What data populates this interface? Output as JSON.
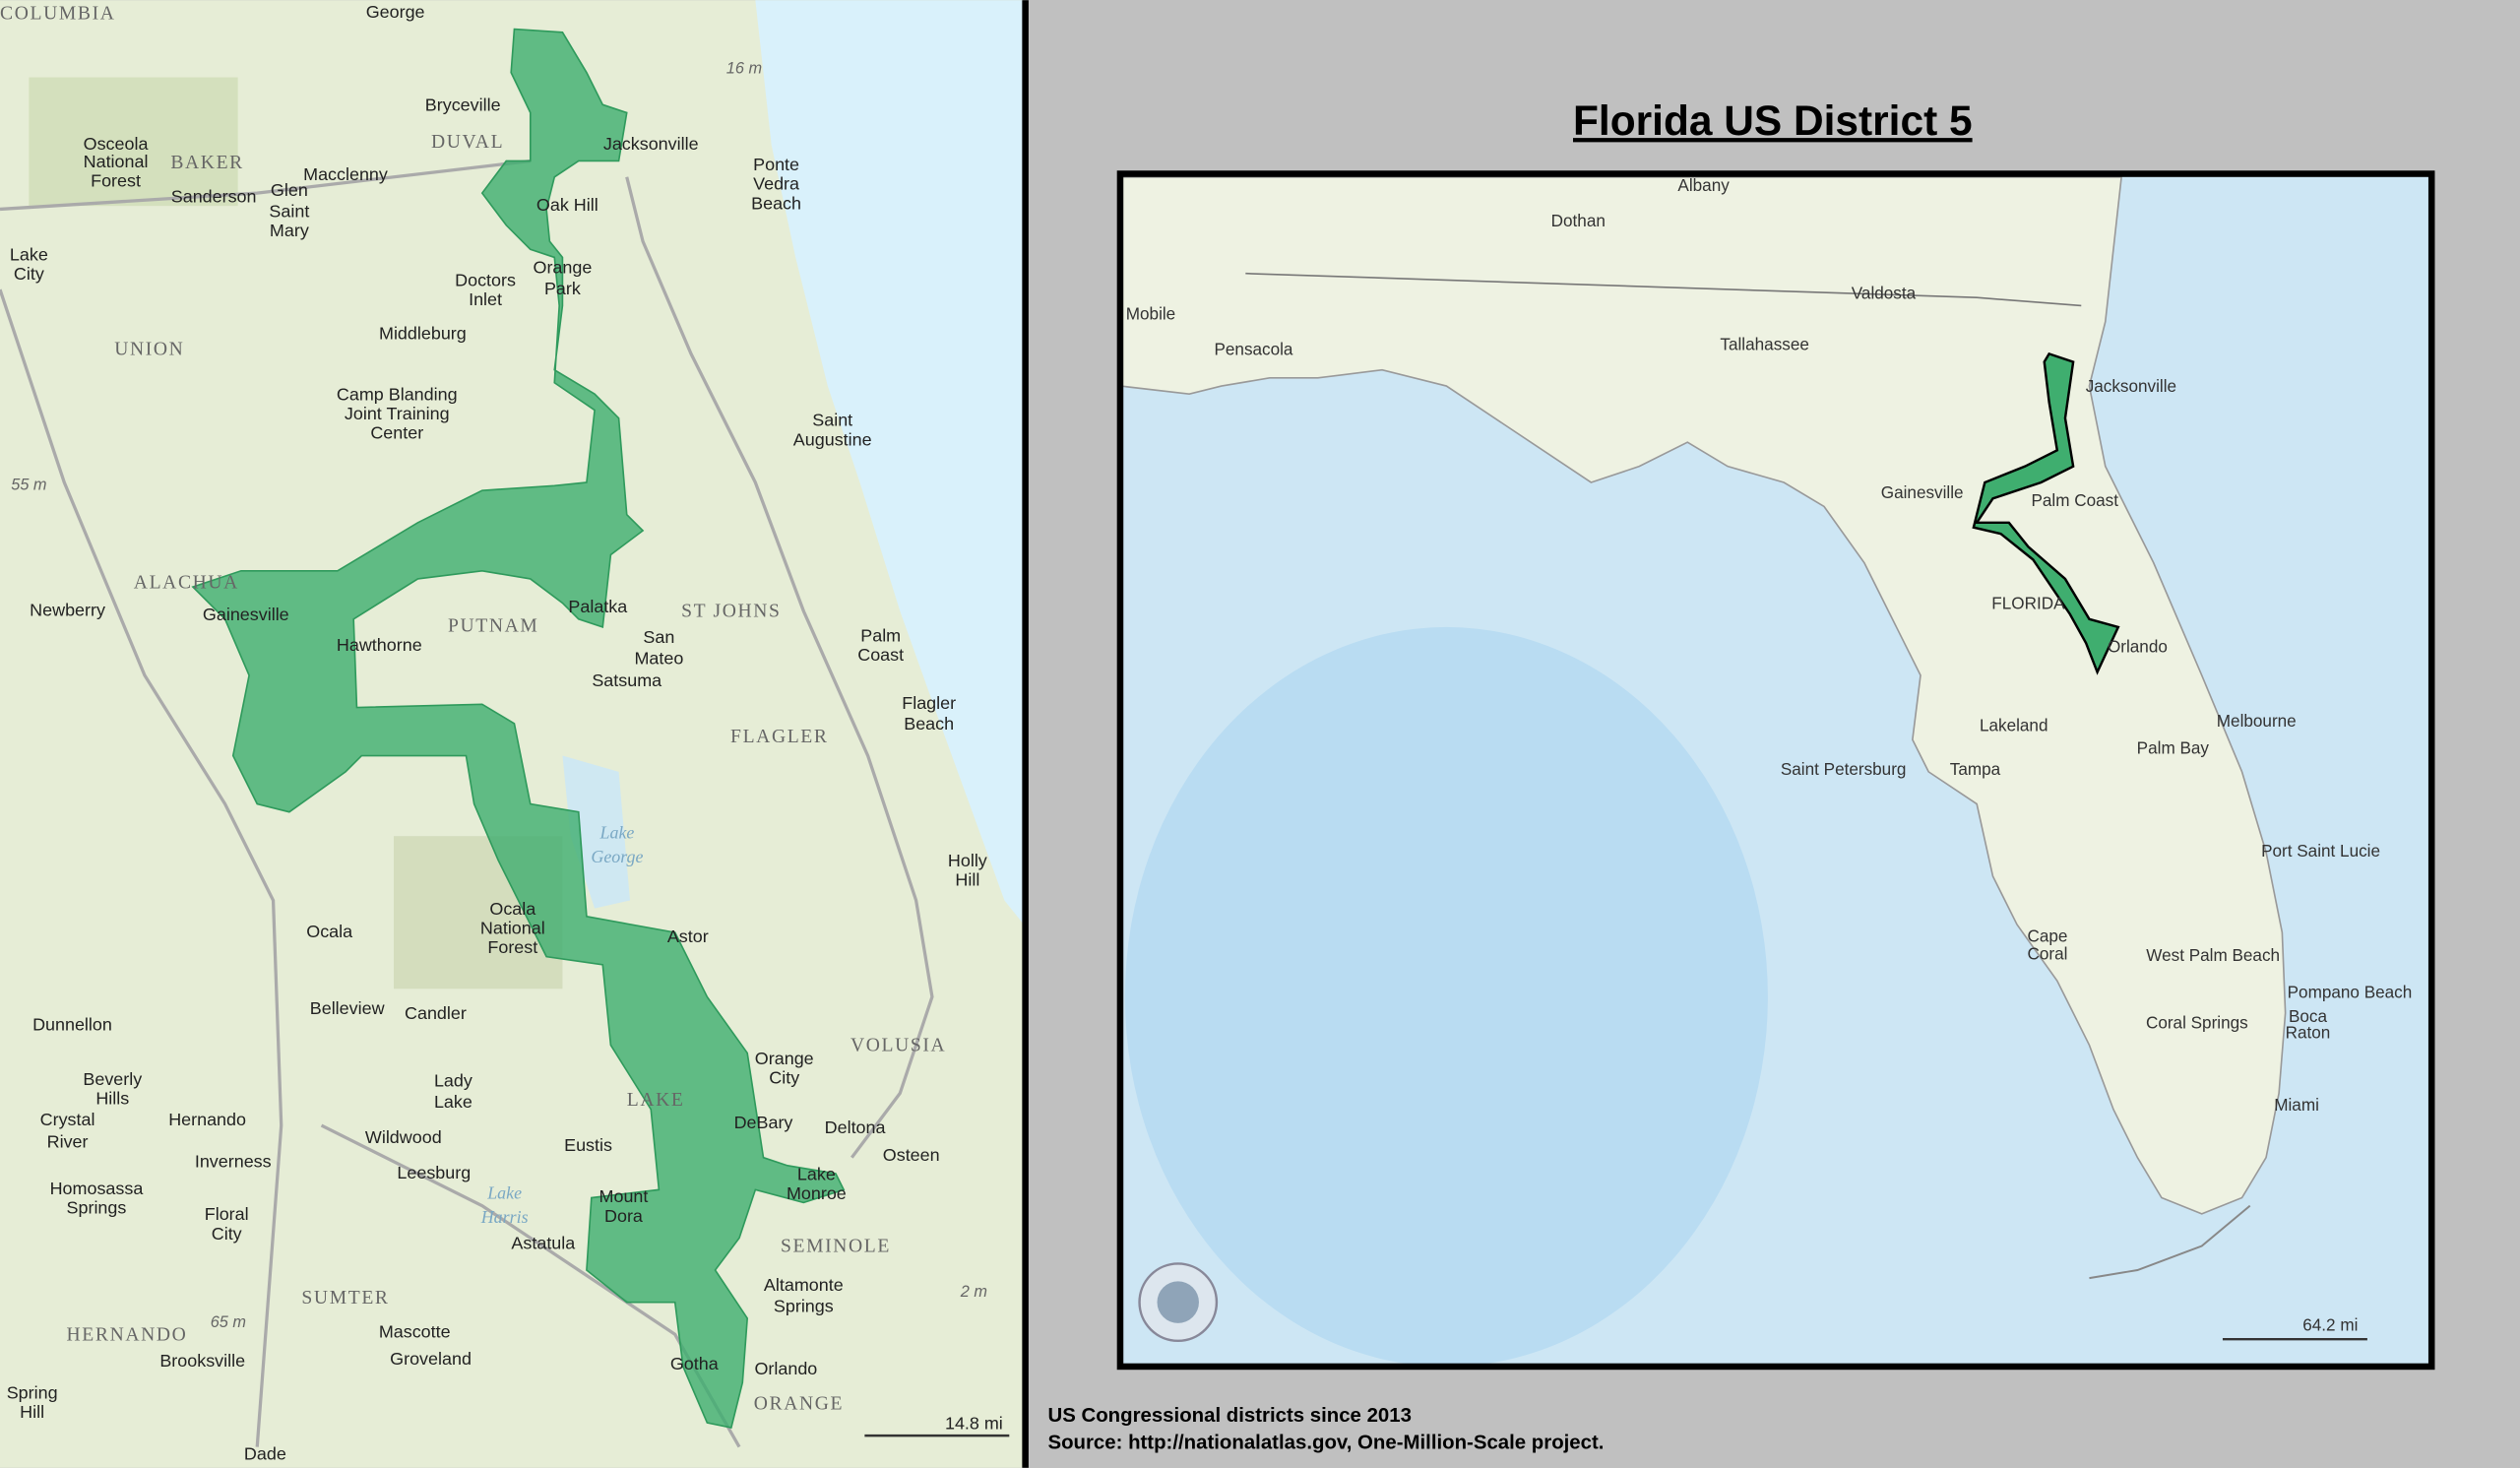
{
  "title": "Florida US District 5",
  "footer": [
    "US Congressional districts since 2013",
    "Source: http://nationalatlas.gov, One-Million-Scale project."
  ],
  "left_map": {
    "scale": "14.8 mi",
    "labels": [
      "COLUMBIA",
      "George",
      "16 m",
      "Bryceville",
      "DUVAL",
      "Jacksonville",
      "Osceola",
      "National",
      "Forest",
      "BAKER",
      "Macclenny",
      "Ponte",
      "Vedra",
      "Beach",
      "Sanderson",
      "Glen",
      "Saint",
      "Mary",
      "Oak Hill",
      "Lake",
      "City",
      "Orange",
      "Park",
      "Doctors",
      "Inlet",
      "UNION",
      "Middleburg",
      "Camp Blanding",
      "Joint Training",
      "Center",
      "Saint",
      "Augustine",
      "55 m",
      "ALACHUA",
      "Newberry",
      "Gainesville",
      "PUTNAM",
      "Palatka",
      "ST JOHNS",
      "Palm",
      "Coast",
      "Hawthorne",
      "San",
      "Mateo",
      "Satsuma",
      "Flagler",
      "Beach",
      "FLAGLER",
      "Lake",
      "George",
      "Holly",
      "Hill",
      "Ocala",
      "National",
      "Forest",
      "Astor",
      "Ocala",
      "Belleview",
      "Candler",
      "Dunnellon",
      "VOLUSIA",
      "Orange",
      "City",
      "Beverly",
      "Hills",
      "Lady",
      "Lake",
      "Hernando",
      "Crystal",
      "River",
      "LAKE",
      "DeBary",
      "Deltona",
      "Wildwood",
      "Eustis",
      "Inverness",
      "Osteen",
      "Leesburg",
      "Lake",
      "Monroe",
      "Homosassa",
      "Springs",
      "Mount",
      "Dora",
      "Floral",
      "City",
      "Lake",
      "Harris",
      "Astatula",
      "SEMINOLE",
      "Altamonte",
      "Springs",
      "2 m",
      "SUMTER",
      "Mascotte",
      "65 m",
      "HERNANDO",
      "Groveland",
      "Brooksville",
      "Orlando",
      "Gotha",
      "ORANGE",
      "Spring",
      "Hill",
      "Dade"
    ]
  },
  "right_map": {
    "scale": "64.2 mi",
    "labels": [
      "Albany",
      "Dothan",
      "Valdosta",
      "Mobile",
      "Pensacola",
      "Tallahassee",
      "Jacksonville",
      "Gainesville",
      "Palm Coast",
      "FLORIDA",
      "Orlando",
      "Melbourne",
      "Lakeland",
      "Palm Bay",
      "Saint Petersburg",
      "Tampa",
      "Port Saint Lucie",
      "Cape",
      "Coral",
      "West Palm Beach",
      "Pompano Beach",
      "Coral Springs",
      "Boca",
      "Raton",
      "Miami"
    ]
  }
}
